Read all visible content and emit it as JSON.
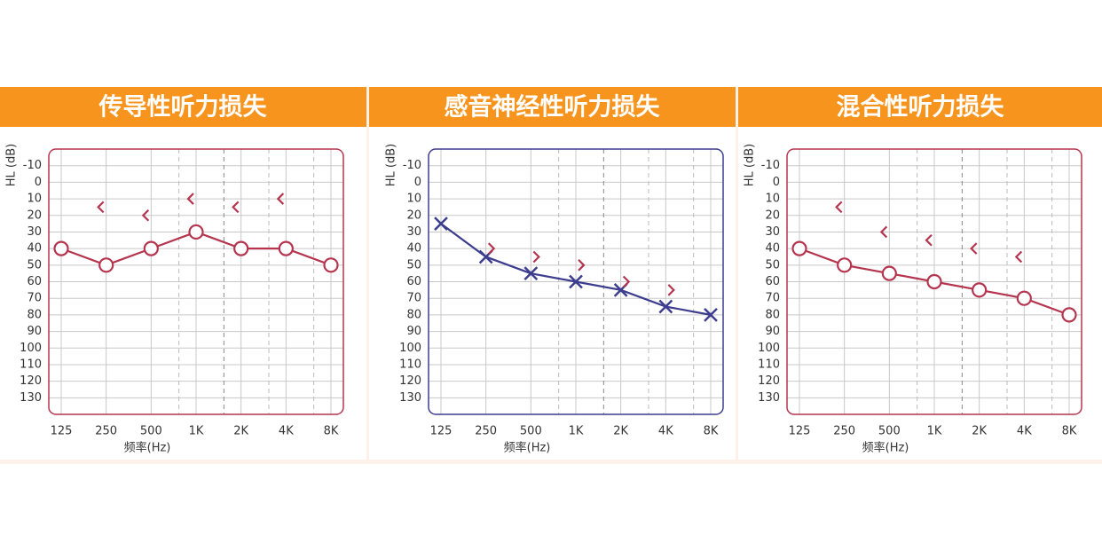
{
  "chart_data": [
    {
      "type": "line",
      "title": "传导性听力损失",
      "y_label": "HL (dB)",
      "x_label": "频率(Hz)",
      "categories": [
        "125",
        "250",
        "500",
        "1K",
        "2K",
        "4K",
        "8K"
      ],
      "ylim": [
        -20,
        140
      ],
      "y_inverted": true,
      "yticks": [
        -10,
        0,
        10,
        20,
        30,
        40,
        50,
        60,
        70,
        80,
        90,
        100,
        110,
        120,
        130
      ],
      "grid": true,
      "frame_color": "#b5354f",
      "series": [
        {
          "color": "#b5354f",
          "marker": "circle",
          "connect": true,
          "values": [
            40,
            50,
            40,
            30,
            40,
            40,
            50
          ]
        },
        {
          "color": "#b5354f",
          "marker": "<",
          "connect": false,
          "values": [
            null,
            15,
            20,
            10,
            15,
            10,
            null
          ]
        }
      ]
    },
    {
      "type": "line",
      "title": "感音神经性听力损失",
      "y_label": "HL (dB)",
      "x_label": "频率(Hz)",
      "categories": [
        "125",
        "250",
        "500",
        "1K",
        "2K",
        "4K",
        "8K"
      ],
      "ylim": [
        -20,
        140
      ],
      "y_inverted": true,
      "yticks": [
        -10,
        0,
        10,
        20,
        30,
        40,
        50,
        60,
        70,
        80,
        90,
        100,
        110,
        120,
        130
      ],
      "grid": true,
      "frame_color": "#3d3d8f",
      "series": [
        {
          "color": "#3d3d8f",
          "marker": "x",
          "connect": true,
          "values": [
            25,
            45,
            55,
            60,
            65,
            75,
            80
          ]
        },
        {
          "color": "#b5354f",
          "marker": ">",
          "connect": false,
          "values": [
            null,
            40,
            45,
            50,
            60,
            65,
            null
          ]
        }
      ]
    },
    {
      "type": "line",
      "title": "混合性听力损失",
      "y_label": "HL (dB)",
      "x_label": "频率(Hz)",
      "categories": [
        "125",
        "250",
        "500",
        "1K",
        "2K",
        "4K",
        "8K"
      ],
      "ylim": [
        -20,
        140
      ],
      "y_inverted": true,
      "yticks": [
        -10,
        0,
        10,
        20,
        30,
        40,
        50,
        60,
        70,
        80,
        90,
        100,
        110,
        120,
        130
      ],
      "grid": true,
      "frame_color": "#b5354f",
      "series": [
        {
          "color": "#b5354f",
          "marker": "circle",
          "connect": true,
          "values": [
            40,
            50,
            55,
            60,
            65,
            70,
            80
          ]
        },
        {
          "color": "#b5354f",
          "marker": "<",
          "connect": false,
          "values": [
            null,
            15,
            30,
            35,
            40,
            45,
            null
          ]
        }
      ]
    }
  ]
}
